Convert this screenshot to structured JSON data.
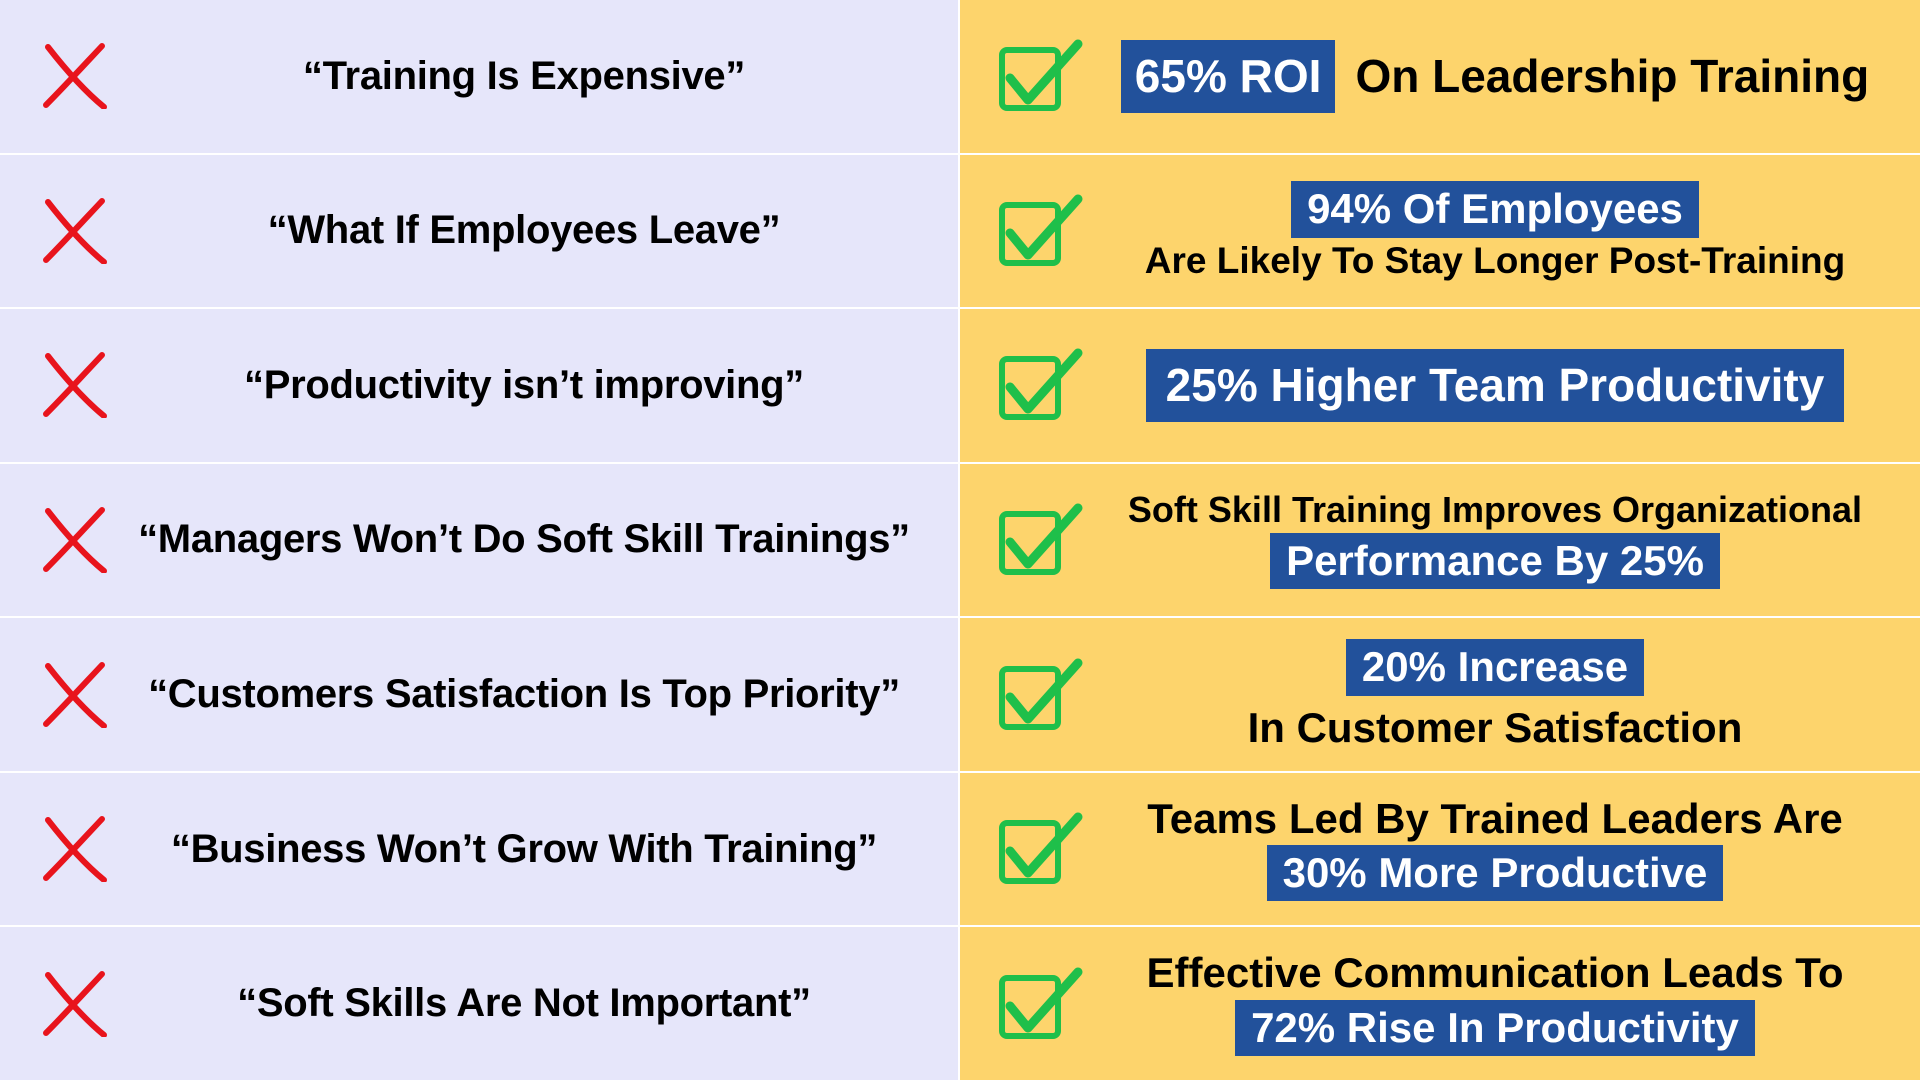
{
  "colors": {
    "left_bg": "#e6e6fa",
    "right_bg": "#fdd46c",
    "highlight": "#22519b",
    "cross": "#e8141c",
    "check": "#1fbf4a"
  },
  "icons": {
    "left": "cross-icon",
    "right": "checkbox-check-icon"
  },
  "rows": [
    {
      "myth": "“Training Is Expensive”",
      "fact": [
        [
          {
            "text": "65% ROI",
            "highlight": true
          },
          {
            "text": "On Leadership Training",
            "highlight": false
          }
        ]
      ]
    },
    {
      "myth": "“What If Employees Leave”",
      "fact": [
        [
          {
            "text": "94% Of Employees",
            "highlight": true
          }
        ],
        [
          {
            "text": "Are Likely To Stay Longer Post-Training",
            "highlight": false
          }
        ]
      ]
    },
    {
      "myth": "“Productivity isn’t improving”",
      "fact": [
        [
          {
            "text": "25% Higher Team Productivity",
            "highlight": true
          }
        ]
      ]
    },
    {
      "myth": "“Managers Won’t Do Soft Skill Trainings”",
      "fact": [
        [
          {
            "text": "Soft Skill Training Improves Organizational",
            "highlight": false
          }
        ],
        [
          {
            "text": "Performance By 25%",
            "highlight": true
          }
        ]
      ]
    },
    {
      "myth": "“Customers Satisfaction Is Top Priority”",
      "fact": [
        [
          {
            "text": "20% Increase",
            "highlight": true
          }
        ],
        [
          {
            "text": "In Customer Satisfaction",
            "highlight": false
          }
        ]
      ]
    },
    {
      "myth": "“Business Won’t Grow With Training”",
      "fact": [
        [
          {
            "text": "Teams Led By Trained Leaders Are",
            "highlight": false
          }
        ],
        [
          {
            "text": "30% More Productive",
            "highlight": true
          }
        ]
      ]
    },
    {
      "myth": "“Soft Skills Are Not Important”",
      "fact": [
        [
          {
            "text": "Effective Communication Leads To",
            "highlight": false
          }
        ],
        [
          {
            "text": "72% Rise In Productivity",
            "highlight": true
          }
        ]
      ]
    }
  ]
}
